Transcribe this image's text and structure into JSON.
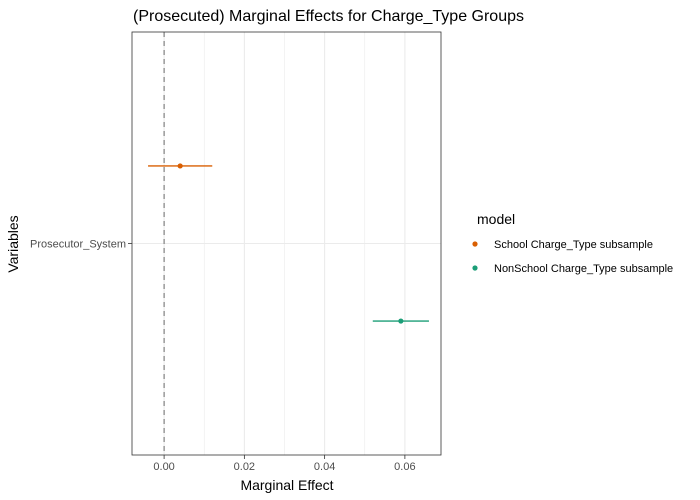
{
  "chart_data": {
    "type": "scatter",
    "title": "(Prosecuted) Marginal Effects for Charge_Type Groups",
    "xlabel": "Marginal Effect",
    "ylabel": "Variables",
    "xlim": [
      -0.008,
      0.069
    ],
    "x_ticks": [
      0.0,
      0.02,
      0.04,
      0.06
    ],
    "x_tick_labels": [
      "0.00",
      "0.02",
      "0.04",
      "0.06"
    ],
    "y_categories": [
      "Prosecutor_System"
    ],
    "reference_line": {
      "x": 0,
      "style": "dashed"
    },
    "grid": true,
    "legend": {
      "title": "model",
      "position": "right"
    },
    "series": [
      {
        "name": "School Charge_Type subsample",
        "color": "#D95F02",
        "category": "Prosecutor_System",
        "offset": 0.22,
        "estimate": 0.004,
        "lower": -0.004,
        "upper": 0.012
      },
      {
        "name": "NonSchool Charge_Type subsample",
        "color": "#1B9E77",
        "category": "Prosecutor_System",
        "offset": -0.22,
        "estimate": 0.059,
        "lower": 0.052,
        "upper": 0.066
      }
    ]
  }
}
